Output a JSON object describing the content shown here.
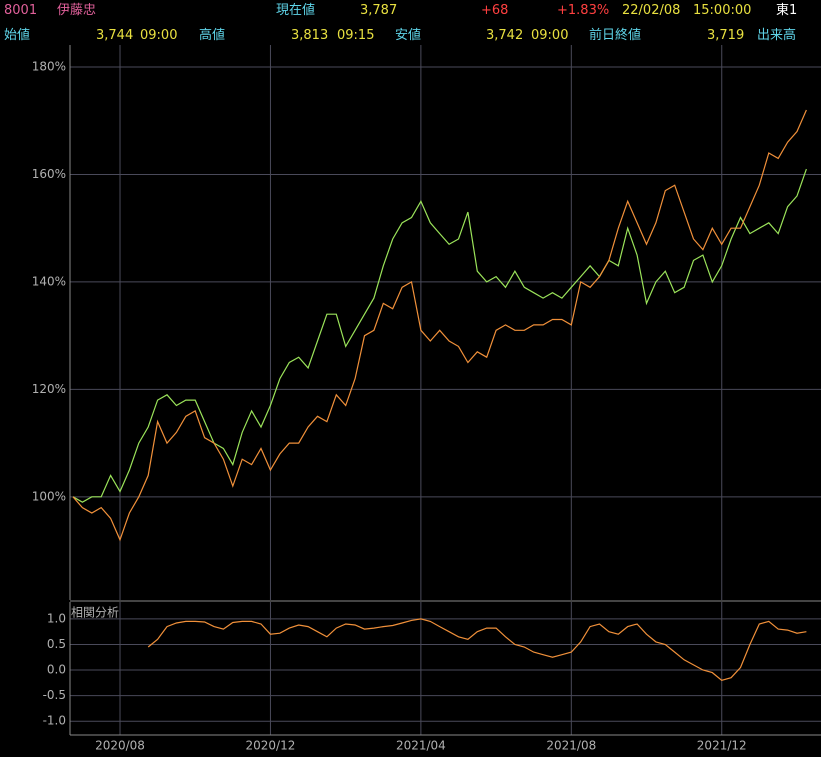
{
  "header": {
    "code": "8001",
    "name": "伊藤忠",
    "price_label": "現在値",
    "price": "3,787",
    "change": "+68",
    "change_pct": "+1.83%",
    "date": "22/02/08",
    "time": "15:00:00",
    "market": "東1",
    "open_label": "始値",
    "open": "3,744",
    "open_time": "09:00",
    "high_label": "高値",
    "high": "3,813",
    "high_time": "09:15",
    "low_label": "安値",
    "low": "3,742",
    "low_time": "09:00",
    "prev_label": "前日終値",
    "prev": "3,719",
    "volume_label": "出来高"
  },
  "chart_data": [
    {
      "type": "line",
      "grid": true,
      "x": [
        5.75,
        6,
        6.25,
        6.5,
        6.75,
        7,
        7.25,
        7.5,
        7.75,
        8,
        8.25,
        8.5,
        8.75,
        9,
        9.25,
        9.5,
        9.75,
        10,
        10.25,
        10.5,
        10.75,
        11,
        11.25,
        11.5,
        11.75,
        12,
        12.25,
        12.5,
        12.75,
        13,
        13.25,
        13.5,
        13.75,
        14,
        14.25,
        14.5,
        14.75,
        15,
        15.25,
        15.5,
        15.75,
        16,
        16.25,
        16.5,
        16.75,
        17,
        17.25,
        17.5,
        17.75,
        18,
        18.25,
        18.5,
        18.75,
        19,
        19.25,
        19.5,
        19.75,
        20,
        20.25,
        20.5,
        20.75,
        21,
        21.25,
        21.5,
        21.75,
        22,
        22.25,
        22.5,
        22.75,
        23,
        23.25,
        23.5,
        23.75,
        24,
        24.25,
        24.5,
        24.75,
        25,
        25.25
      ],
      "xlim": [
        5.67,
        25.4
      ],
      "xticks": [
        {
          "value": 7,
          "label": "2020/08"
        },
        {
          "value": 11,
          "label": "2020/12"
        },
        {
          "value": 15,
          "label": "2021/04"
        },
        {
          "value": 19,
          "label": "2021/08"
        },
        {
          "value": 23,
          "label": "2021/12"
        }
      ],
      "ylim": [
        80.8,
        184.1
      ],
      "yticks": [
        {
          "value": 100,
          "label": "100%"
        },
        {
          "value": 120,
          "label": "120%"
        },
        {
          "value": 140,
          "label": "140%"
        },
        {
          "value": 160,
          "label": "160%"
        },
        {
          "value": 180,
          "label": "180%"
        }
      ],
      "series": [
        {
          "color": "#9be35a",
          "values": [
            100,
            99,
            100,
            100,
            104,
            101,
            105,
            110,
            113,
            118,
            119,
            117,
            118,
            118,
            114,
            110,
            109,
            106,
            112,
            116,
            113,
            117,
            122,
            125,
            126,
            124,
            129,
            134,
            134,
            128,
            131,
            134,
            137,
            143,
            148,
            151,
            152,
            155,
            151,
            149,
            147,
            148,
            153,
            142,
            140,
            141,
            139,
            142,
            139,
            138,
            137,
            138,
            137,
            139,
            141,
            143,
            141,
            144,
            143,
            150,
            145,
            136,
            140,
            142,
            138,
            139,
            144,
            145,
            140,
            143,
            148,
            152,
            149,
            150,
            151,
            149,
            154,
            156,
            161
          ]
        },
        {
          "color": "#f0903a",
          "values": [
            100,
            98,
            97,
            98,
            96,
            92,
            97,
            100,
            104,
            114,
            110,
            112,
            115,
            116,
            111,
            110,
            107,
            102,
            107,
            106,
            109,
            105,
            108,
            110,
            110,
            113,
            115,
            114,
            119,
            117,
            122,
            130,
            131,
            136,
            135,
            139,
            140,
            131,
            129,
            131,
            129,
            128,
            125,
            127,
            126,
            131,
            132,
            131,
            131,
            132,
            132,
            133,
            133,
            132,
            140,
            139,
            141,
            144,
            150,
            155,
            151,
            147,
            151,
            157,
            158,
            153,
            148,
            146,
            150,
            147,
            150,
            150,
            154,
            158,
            164,
            163,
            166,
            168,
            172
          ]
        }
      ]
    },
    {
      "type": "line",
      "title": "相関分析",
      "grid": true,
      "ylim": [
        -1.27,
        1.33
      ],
      "yticks": [
        {
          "value": -1,
          "label": "-1.0"
        },
        -0.5,
        {
          "value": 0,
          "label": "0.0"
        },
        0.5,
        {
          "value": 1,
          "label": "1.0"
        }
      ],
      "series": [
        {
          "color": "#f0903a",
          "values": [
            null,
            null,
            null,
            null,
            null,
            null,
            null,
            null,
            0.45,
            0.6,
            0.85,
            0.92,
            0.95,
            0.95,
            0.94,
            0.85,
            0.8,
            0.93,
            0.95,
            0.95,
            0.9,
            0.7,
            0.72,
            0.82,
            0.88,
            0.85,
            0.75,
            0.65,
            0.82,
            0.9,
            0.88,
            0.8,
            0.82,
            0.85,
            0.87,
            0.92,
            0.97,
            1.0,
            0.95,
            0.85,
            0.75,
            0.65,
            0.6,
            0.75,
            0.82,
            0.82,
            0.65,
            0.5,
            0.45,
            0.35,
            0.3,
            0.25,
            0.3,
            0.35,
            0.55,
            0.85,
            0.9,
            0.75,
            0.7,
            0.85,
            0.9,
            0.7,
            0.55,
            0.5,
            0.35,
            0.2,
            0.1,
            0.0,
            -0.05,
            -0.2,
            -0.15,
            0.05,
            0.5,
            0.9,
            0.95,
            0.8,
            0.78,
            0.72,
            0.75
          ]
        }
      ]
    }
  ]
}
